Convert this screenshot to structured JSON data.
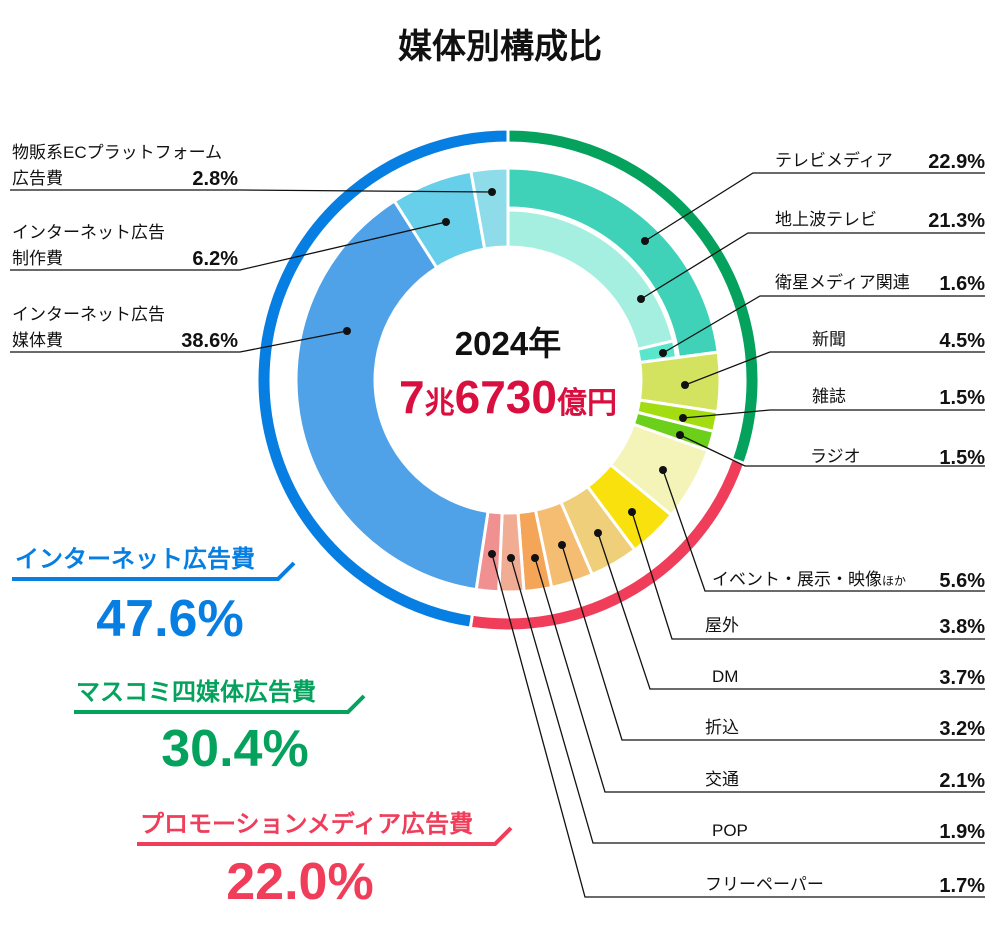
{
  "chart_data": {
    "type": "pie",
    "title": "媒体別構成比",
    "center": {
      "year": "2024年",
      "amount_1": "7",
      "amount_unit_1": "兆",
      "amount_2": "6730",
      "amount_unit_2": "億円"
    },
    "groups": [
      {
        "name": "マスコミ四媒体広告費",
        "value": 30.4,
        "label": "30.4%",
        "color": "#05a25e"
      },
      {
        "name": "プロモーションメディア広告費",
        "value": 22.0,
        "label": "22.0%",
        "color": "#f03d5a"
      },
      {
        "name": "インターネット広告費",
        "value": 47.6,
        "label": "47.6%",
        "color": "#067ee2"
      }
    ],
    "segments": [
      {
        "name": "テレビメディア",
        "value": 22.9,
        "label": "22.9%",
        "color": "#3fd2b8",
        "group": 0
      },
      {
        "name": "地上波テレビ",
        "value": 21.3,
        "label": "21.3%",
        "color": "#a5efe0",
        "group": 0,
        "sub_of": "テレビメディア"
      },
      {
        "name": "衛星メディア関連",
        "value": 1.6,
        "label": "1.6%",
        "color": "#5ae6cc",
        "group": 0,
        "sub_of": "テレビメディア"
      },
      {
        "name": "新聞",
        "value": 4.5,
        "label": "4.5%",
        "color": "#d4e35f",
        "group": 0
      },
      {
        "name": "雑誌",
        "value": 1.5,
        "label": "1.5%",
        "color": "#a3dc10",
        "group": 0
      },
      {
        "name": "ラジオ",
        "value": 1.5,
        "label": "1.5%",
        "color": "#6ccf1a",
        "group": 0
      },
      {
        "name": "イベント・展示・映像",
        "name_suffix": "ほか",
        "value": 5.6,
        "label": "5.6%",
        "color": "#f4f4b8",
        "group": 1
      },
      {
        "name": "屋外",
        "value": 3.8,
        "label": "3.8%",
        "color": "#f8e10c",
        "group": 1
      },
      {
        "name": "DM",
        "value": 3.7,
        "label": "3.7%",
        "color": "#f0cf7a",
        "group": 1
      },
      {
        "name": "折込",
        "value": 3.2,
        "label": "3.2%",
        "color": "#f5bd72",
        "group": 1
      },
      {
        "name": "交通",
        "value": 2.1,
        "label": "2.1%",
        "color": "#f4a557",
        "group": 1
      },
      {
        "name": "POP",
        "value": 1.9,
        "label": "1.9%",
        "color": "#f1ad94",
        "group": 1
      },
      {
        "name": "フリーペーパー",
        "value": 1.7,
        "label": "1.7%",
        "color": "#f09090",
        "group": 1
      },
      {
        "name_line1": "インターネット広告",
        "name_line2": "媒体費",
        "value": 38.6,
        "label": "38.6%",
        "color": "#4fa1e8",
        "group": 2
      },
      {
        "name_line1": "インターネット広告",
        "name_line2": "制作費",
        "value": 6.2,
        "label": "6.2%",
        "color": "#67cfe9",
        "group": 2
      },
      {
        "name_line1": "物販系ECプラットフォーム",
        "name_line2": "広告費",
        "value": 2.8,
        "label": "2.8%",
        "color": "#8edbe9",
        "group": 2
      }
    ],
    "center_amount_color": "#d9103f"
  }
}
